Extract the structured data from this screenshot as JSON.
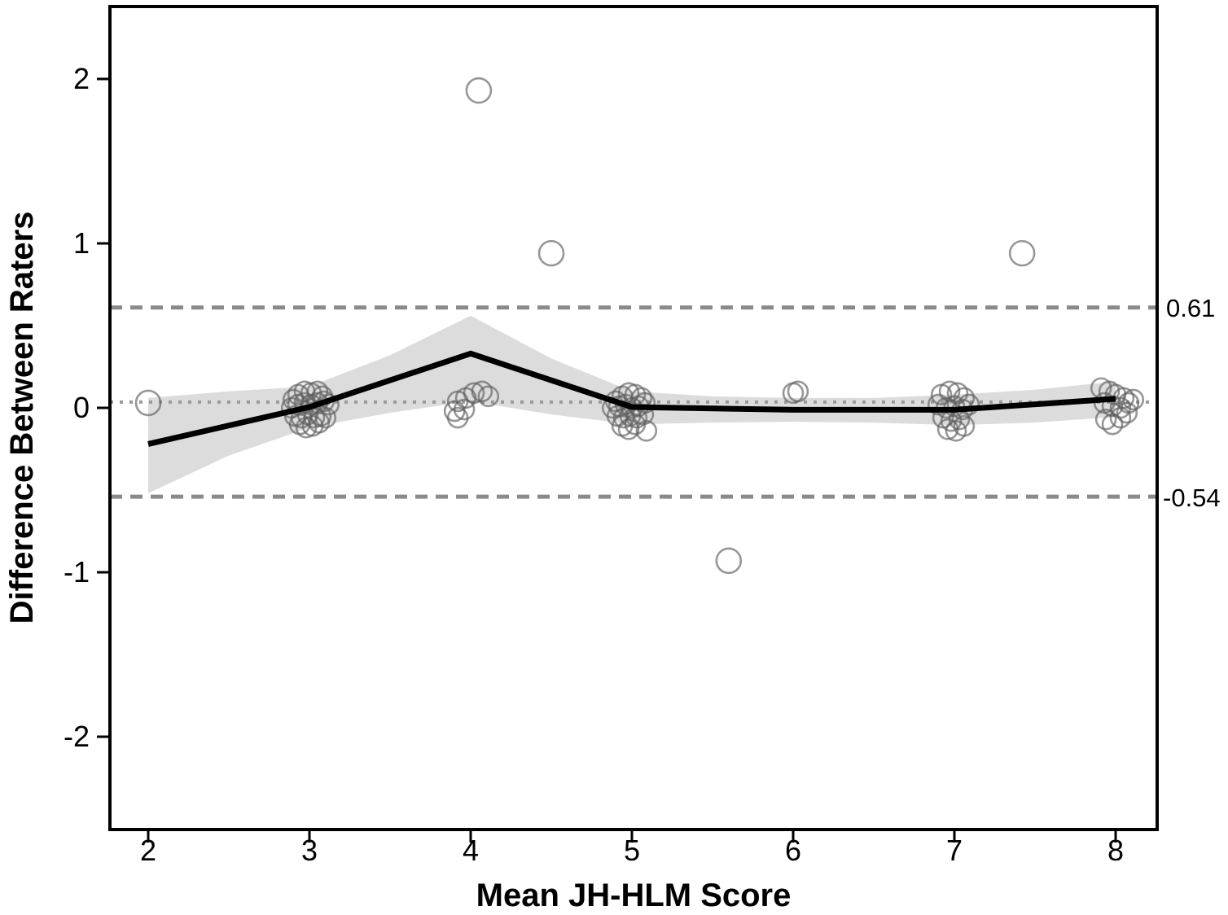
{
  "chart_data": {
    "type": "scatter",
    "title": "",
    "xlabel": "Mean JH-HLM Score",
    "ylabel": "Difference Between Raters",
    "xlim": [
      1.76,
      8.26
    ],
    "ylim": [
      -2.56,
      2.44
    ],
    "xticks": [
      2,
      3,
      4,
      5,
      6,
      7,
      8
    ],
    "yticks": [
      -2,
      -1,
      0,
      1,
      2
    ],
    "grid": false,
    "legend": "none",
    "mean_difference": 0.035,
    "upper_limit_of_agreement": 0.61,
    "lower_limit_of_agreement": -0.54,
    "annotations": {
      "upper_label": "0.61",
      "lower_label": "-0.54"
    },
    "colors": {
      "point_stroke": "rgba(95,95,95,0.65)",
      "loess_line": "#000000",
      "confidence_band": "#dcdcdc",
      "dashed_reference": "#8a8a8a",
      "dotted_reference": "#9a9a9a",
      "axis": "#000000",
      "background": "#ffffff"
    },
    "loess_line": [
      [
        2.0,
        -0.22
      ],
      [
        3.0,
        0.005
      ],
      [
        4.0,
        0.33
      ],
      [
        5.0,
        0.005
      ],
      [
        6.0,
        -0.012
      ],
      [
        7.0,
        -0.012
      ],
      [
        8.0,
        0.055
      ]
    ],
    "confidence_band": {
      "x": [
        2.0,
        2.5,
        3.0,
        3.5,
        4.0,
        4.5,
        5.0,
        5.5,
        6.0,
        6.5,
        7.0,
        7.5,
        8.0
      ],
      "upper": [
        0.06,
        0.1,
        0.13,
        0.32,
        0.56,
        0.3,
        0.1,
        0.07,
        0.06,
        0.06,
        0.08,
        0.11,
        0.16
      ],
      "lower": [
        -0.52,
        -0.29,
        -0.12,
        -0.03,
        0.04,
        -0.04,
        -0.1,
        -0.09,
        -0.085,
        -0.09,
        -0.105,
        -0.09,
        -0.055
      ]
    },
    "isolated_points": {
      "radius": 15,
      "values": [
        [
          2.0,
          0.03
        ],
        [
          4.05,
          1.93
        ],
        [
          4.5,
          0.94
        ],
        [
          5.6,
          -0.93
        ],
        [
          7.42,
          0.94
        ]
      ]
    },
    "clustered_points": {
      "radius": 12,
      "values": [
        [
          2.9,
          0.05
        ],
        [
          2.93,
          0.08
        ],
        [
          2.97,
          0.1
        ],
        [
          3.01,
          0.09
        ],
        [
          3.05,
          0.1
        ],
        [
          3.08,
          0.07
        ],
        [
          2.89,
          0.0
        ],
        [
          2.93,
          0.02
        ],
        [
          2.97,
          0.03
        ],
        [
          3.01,
          0.02
        ],
        [
          3.05,
          0.03
        ],
        [
          3.09,
          0.04
        ],
        [
          3.12,
          0.02
        ],
        [
          2.91,
          -0.05
        ],
        [
          2.95,
          -0.06
        ],
        [
          2.99,
          -0.04
        ],
        [
          3.03,
          -0.06
        ],
        [
          3.07,
          -0.05
        ],
        [
          2.94,
          -0.1
        ],
        [
          2.98,
          -0.12
        ],
        [
          3.02,
          -0.11
        ],
        [
          3.06,
          -0.09
        ],
        [
          3.1,
          -0.06
        ],
        [
          3.9,
          -0.02
        ],
        [
          3.92,
          0.04
        ],
        [
          3.92,
          -0.06
        ],
        [
          3.96,
          -0.01
        ],
        [
          3.97,
          0.06
        ],
        [
          4.02,
          0.09
        ],
        [
          4.07,
          0.1
        ],
        [
          4.11,
          0.07
        ],
        [
          4.9,
          0.04
        ],
        [
          4.94,
          0.07
        ],
        [
          4.98,
          0.09
        ],
        [
          5.02,
          0.08
        ],
        [
          5.06,
          0.06
        ],
        [
          4.88,
          0.0
        ],
        [
          4.92,
          0.01
        ],
        [
          4.96,
          0.02
        ],
        [
          5.0,
          0.0
        ],
        [
          5.04,
          0.01
        ],
        [
          5.08,
          0.03
        ],
        [
          4.91,
          -0.05
        ],
        [
          4.95,
          -0.06
        ],
        [
          4.99,
          -0.05
        ],
        [
          5.03,
          -0.06
        ],
        [
          5.07,
          -0.04
        ],
        [
          4.94,
          -0.11
        ],
        [
          4.98,
          -0.13
        ],
        [
          5.02,
          -0.1
        ],
        [
          5.09,
          -0.14
        ],
        [
          6.0,
          0.09
        ],
        [
          6.03,
          0.1
        ],
        [
          6.92,
          0.08
        ],
        [
          6.97,
          0.1
        ],
        [
          7.02,
          0.09
        ],
        [
          7.06,
          0.06
        ],
        [
          6.9,
          0.02
        ],
        [
          6.95,
          0.0
        ],
        [
          7.0,
          0.01
        ],
        [
          7.05,
          -0.01
        ],
        [
          7.09,
          0.02
        ],
        [
          6.93,
          -0.06
        ],
        [
          6.98,
          -0.08
        ],
        [
          7.03,
          -0.07
        ],
        [
          6.96,
          -0.13
        ],
        [
          7.01,
          -0.14
        ],
        [
          7.06,
          -0.11
        ],
        [
          7.91,
          0.12
        ],
        [
          7.96,
          0.1
        ],
        [
          8.0,
          0.08
        ],
        [
          8.05,
          0.06
        ],
        [
          7.93,
          0.03
        ],
        [
          7.98,
          0.01
        ],
        [
          8.03,
          0.0
        ],
        [
          8.08,
          0.03
        ],
        [
          8.11,
          0.05
        ],
        [
          7.94,
          -0.07
        ],
        [
          7.98,
          -0.1
        ],
        [
          8.03,
          -0.06
        ],
        [
          8.07,
          -0.03
        ]
      ]
    }
  }
}
